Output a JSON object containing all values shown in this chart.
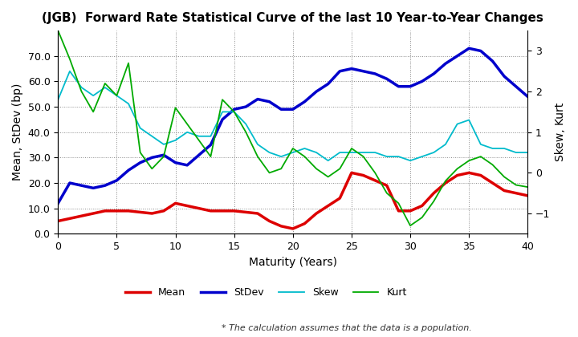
{
  "title": "(JGB)  Forward Rate Statistical Curve of the last 10 Year-to-Year Changes",
  "xlabel": "Maturity (Years)",
  "ylabel_left": "Mean, StDev (bp)",
  "ylabel_right": "Skew, Kurt",
  "footnote": "* The calculation assumes that the data is a population.",
  "x": [
    0,
    1,
    2,
    3,
    4,
    5,
    6,
    7,
    8,
    9,
    10,
    11,
    12,
    13,
    14,
    15,
    16,
    17,
    18,
    19,
    20,
    21,
    22,
    23,
    24,
    25,
    26,
    27,
    28,
    29,
    30,
    31,
    32,
    33,
    34,
    35,
    36,
    37,
    38,
    39,
    40
  ],
  "mean": [
    5,
    6,
    7,
    8,
    9,
    9,
    9,
    8.5,
    8,
    9,
    12,
    11,
    10,
    9,
    9,
    9,
    8.5,
    8,
    5,
    3,
    2,
    4,
    8,
    11,
    14,
    24,
    23,
    21,
    19,
    9,
    9,
    11,
    16,
    20,
    23,
    24,
    23,
    20,
    17,
    16,
    15
  ],
  "stdev": [
    12,
    20,
    19,
    18,
    19,
    21,
    25,
    28,
    30,
    31,
    28,
    27,
    31,
    35,
    45,
    49,
    50,
    53,
    52,
    49,
    49,
    52,
    56,
    59,
    64,
    65,
    64,
    63,
    61,
    58,
    58,
    60,
    63,
    67,
    70,
    73,
    72,
    68,
    62,
    58,
    54
  ],
  "skew": [
    1.8,
    2.5,
    2.1,
    1.9,
    2.1,
    1.9,
    1.7,
    1.1,
    0.9,
    0.7,
    0.8,
    1.0,
    0.9,
    0.9,
    1.5,
    1.5,
    1.2,
    0.7,
    0.5,
    0.4,
    0.5,
    0.6,
    0.5,
    0.3,
    0.5,
    0.5,
    0.5,
    0.5,
    0.4,
    0.4,
    0.3,
    0.4,
    0.5,
    0.7,
    1.2,
    1.3,
    0.7,
    0.6,
    0.6,
    0.5,
    0.5
  ],
  "kurt": [
    3.5,
    2.8,
    2.0,
    1.5,
    2.2,
    1.9,
    2.7,
    0.5,
    0.1,
    0.4,
    1.6,
    1.2,
    0.8,
    0.4,
    1.8,
    1.5,
    1.0,
    0.4,
    0.0,
    0.1,
    0.6,
    0.4,
    0.1,
    -0.1,
    0.1,
    0.6,
    0.4,
    0.0,
    -0.5,
    -0.75,
    -1.3,
    -1.1,
    -0.7,
    -0.2,
    0.1,
    0.3,
    0.4,
    0.2,
    -0.1,
    -0.3,
    -0.35
  ],
  "mean_color": "#dd0000",
  "stdev_color": "#0000cc",
  "skew_color": "#00bbcc",
  "kurt_color": "#00aa00",
  "mean_lw": 2.5,
  "stdev_lw": 2.5,
  "skew_lw": 1.3,
  "kurt_lw": 1.3,
  "xlim": [
    0,
    40
  ],
  "ylim_left": [
    0,
    80
  ],
  "ylim_right": [
    -1.5,
    3.5
  ],
  "xticks": [
    0,
    5,
    10,
    15,
    20,
    25,
    30,
    35,
    40
  ],
  "yticks_left": [
    0.0,
    10.0,
    20.0,
    30.0,
    40.0,
    50.0,
    60.0,
    70.0
  ],
  "yticks_right": [
    -1,
    0,
    1,
    2,
    3
  ],
  "grid_color": "#888888",
  "bg_color": "#ffffff"
}
